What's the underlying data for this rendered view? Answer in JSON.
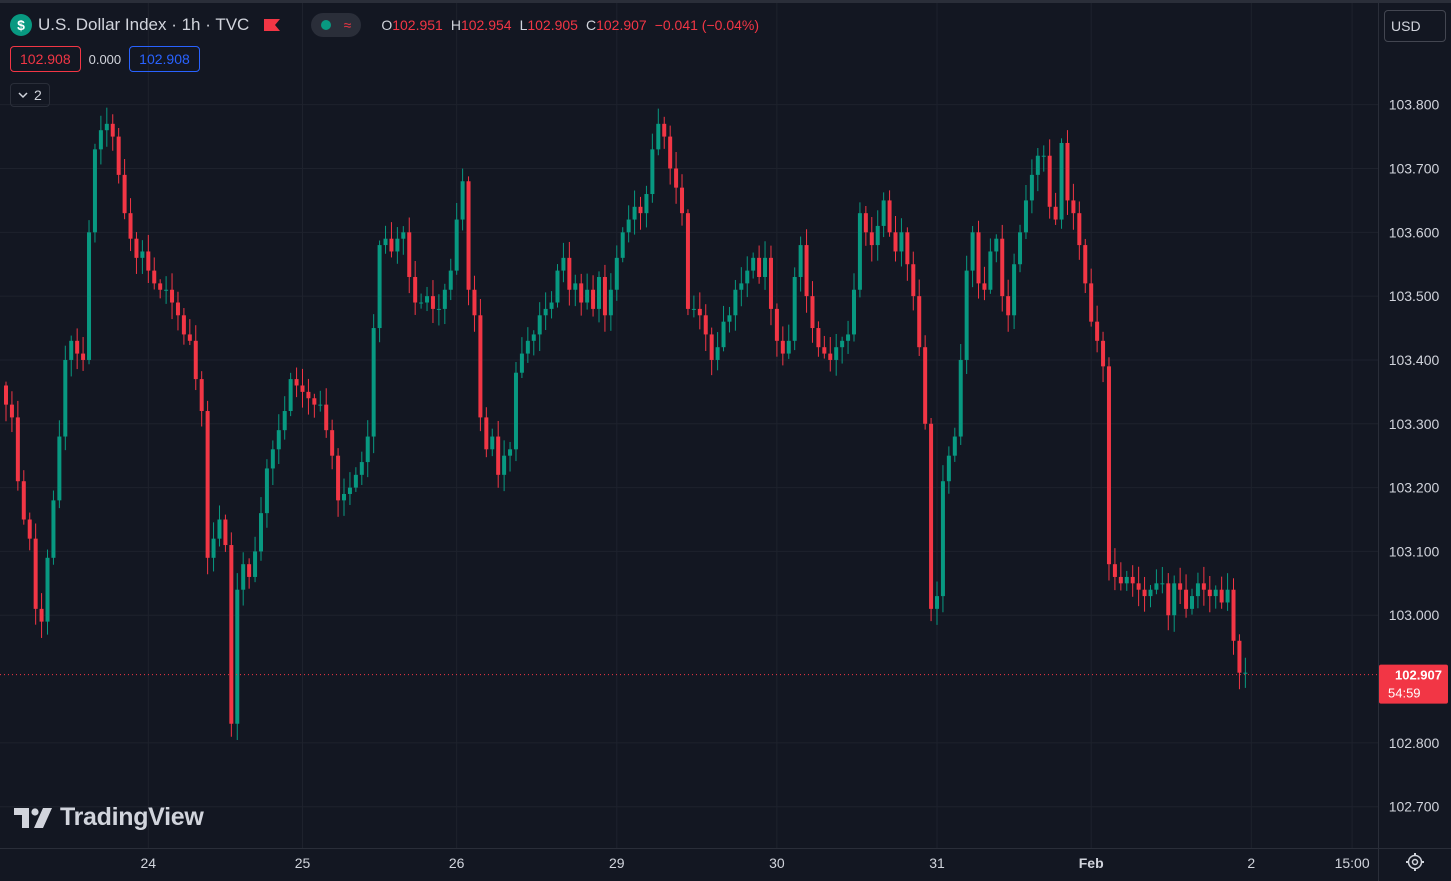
{
  "header": {
    "symbol_title": "U.S. Dollar Index · 1h · TVC",
    "currency_icon": "dollar-icon",
    "flag_icon": "flag-icon",
    "status_icons": [
      "market-open-dot-icon",
      "delayed-wave-icon"
    ],
    "ohlc": {
      "open_label": "O",
      "open": "102.951",
      "high_label": "H",
      "high": "102.954",
      "low_label": "L",
      "low": "102.905",
      "close_label": "C",
      "close": "102.907",
      "change": "−0.041 (−0.04%)"
    }
  },
  "trade": {
    "sell_price": "102.908",
    "spread": "0.000",
    "buy_price": "102.908"
  },
  "indicators_toggle": {
    "label": "2",
    "icon": "chevron-down-icon"
  },
  "currency_button": "USD",
  "price_label": {
    "price": "102.907",
    "countdown": "54:59"
  },
  "watermark": "TradingView",
  "settings_icon": "gear-icon",
  "colors": {
    "background": "#131722",
    "up": "#089981",
    "down": "#f23645",
    "grid": "#1e222d",
    "text": "#d1d4dc"
  },
  "chart_data": {
    "type": "candlestick",
    "interval": "1h",
    "ylim": [
      102.64,
      103.87
    ],
    "y_ticks": [
      "103.800",
      "103.700",
      "103.600",
      "103.500",
      "103.400",
      "103.300",
      "103.200",
      "103.100",
      "103.000",
      "102.800",
      "102.700"
    ],
    "x_ticks": [
      {
        "label": "24",
        "bar": 24
      },
      {
        "label": "25",
        "bar": 50
      },
      {
        "label": "26",
        "bar": 76
      },
      {
        "label": "29",
        "bar": 103
      },
      {
        "label": "30",
        "bar": 130
      },
      {
        "label": "31",
        "bar": 157
      },
      {
        "label": "Feb",
        "bar": 183
      },
      {
        "label": "2",
        "bar": 210
      },
      {
        "label": "15:00",
        "bar": 227
      }
    ],
    "last_price": 102.907,
    "closes": [
      103.33,
      103.31,
      103.21,
      103.15,
      103.12,
      103.01,
      102.99,
      103.09,
      103.18,
      103.28,
      103.4,
      103.43,
      103.41,
      103.4,
      103.6,
      103.73,
      103.76,
      103.77,
      103.75,
      103.69,
      103.63,
      103.59,
      103.56,
      103.57,
      103.54,
      103.52,
      103.51,
      103.51,
      103.49,
      103.47,
      103.44,
      103.43,
      103.37,
      103.32,
      103.09,
      103.12,
      103.15,
      103.11,
      102.83,
      103.04,
      103.08,
      103.06,
      103.1,
      103.16,
      103.23,
      103.26,
      103.29,
      103.32,
      103.37,
      103.36,
      103.35,
      103.34,
      103.33,
      103.33,
      103.29,
      103.25,
      103.18,
      103.19,
      103.2,
      103.22,
      103.24,
      103.28,
      103.45,
      103.58,
      103.59,
      103.57,
      103.59,
      103.6,
      103.53,
      103.49,
      103.49,
      103.5,
      103.48,
      103.48,
      103.51,
      103.54,
      103.62,
      103.68,
      103.51,
      103.47,
      103.31,
      103.26,
      103.28,
      103.22,
      103.25,
      103.26,
      103.38,
      103.41,
      103.43,
      103.44,
      103.47,
      103.48,
      103.49,
      103.54,
      103.56,
      103.51,
      103.52,
      103.49,
      103.51,
      103.48,
      103.53,
      103.47,
      103.51,
      103.56,
      103.6,
      103.62,
      103.64,
      103.63,
      103.66,
      103.73,
      103.77,
      103.75,
      103.7,
      103.67,
      103.63,
      103.48,
      103.48,
      103.47,
      103.44,
      103.4,
      103.42,
      103.46,
      103.47,
      103.51,
      103.52,
      103.54,
      103.56,
      103.53,
      103.56,
      103.48,
      103.43,
      103.41,
      103.43,
      103.53,
      103.58,
      103.5,
      103.45,
      103.42,
      103.41,
      103.4,
      103.42,
      103.43,
      103.44,
      103.51,
      103.63,
      103.6,
      103.58,
      103.61,
      103.65,
      103.6,
      103.57,
      103.6,
      103.55,
      103.5,
      103.42,
      103.3,
      103.01,
      103.03,
      103.21,
      103.25,
      103.28,
      103.4,
      103.54,
      103.6,
      103.52,
      103.51,
      103.57,
      103.59,
      103.5,
      103.47,
      103.55,
      103.6,
      103.65,
      103.69,
      103.72,
      103.72,
      103.64,
      103.62,
      103.74,
      103.65,
      103.63,
      103.58,
      103.52,
      103.46,
      103.43,
      103.39,
      103.08,
      103.06,
      103.05,
      103.06,
      103.05,
      103.04,
      103.03,
      103.04,
      103.05,
      103.05,
      103.0,
      103.05,
      103.04,
      103.01,
      103.03,
      103.05,
      103.04,
      103.03,
      103.04,
      103.02,
      103.04,
      102.96,
      102.91,
      102.91
    ]
  }
}
